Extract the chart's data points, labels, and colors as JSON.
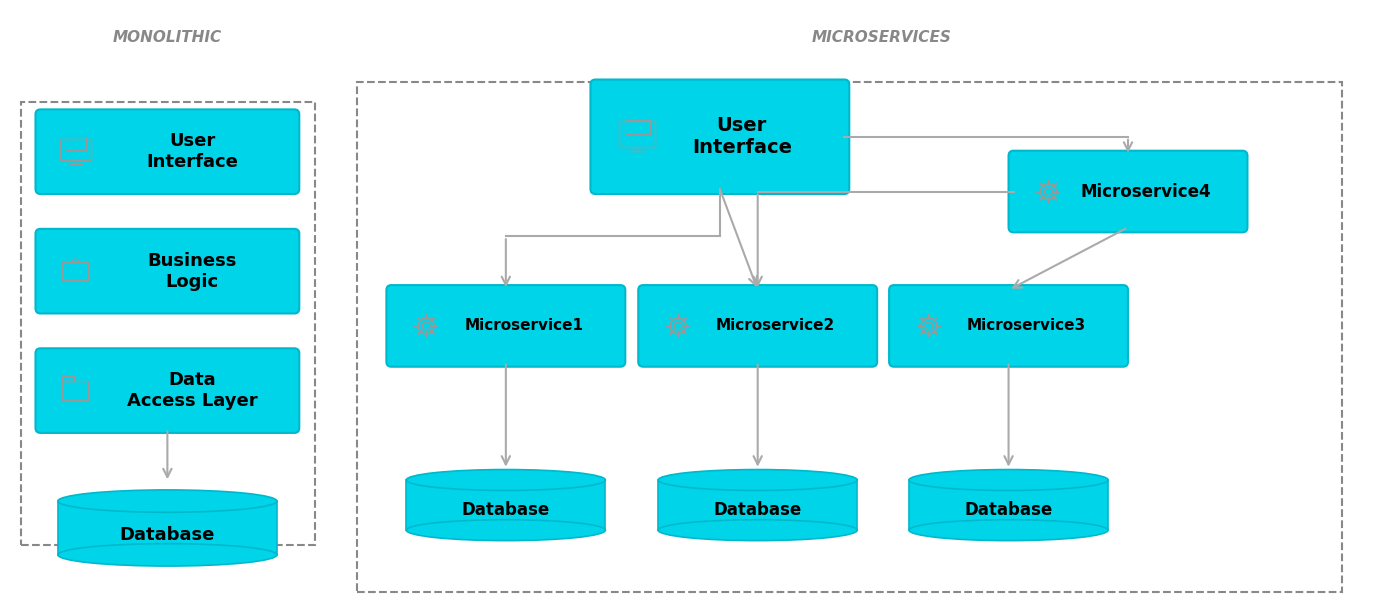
{
  "bg_color": "#ffffff",
  "box_color": "#00d4e8",
  "box_edge_color": "#00b8cc",
  "dashed_border_color": "#888888",
  "arrow_color": "#aaaaaa",
  "text_color": "#000000",
  "label_color": "#555555",
  "title_color": "#888888",
  "icon_color": "#999999",
  "mono_title": "MONOLITHIC",
  "micro_title": "MICROSERVICES",
  "mono_boxes": [
    "User\nInterface",
    "Business\nLogic",
    "Data\nAccess Layer"
  ],
  "micro_ui": "User\nInterface",
  "micro_services": [
    "Microservice1",
    "Microservice2",
    "Microservice3"
  ],
  "micro4": "Microservice4",
  "db_label": "Database"
}
